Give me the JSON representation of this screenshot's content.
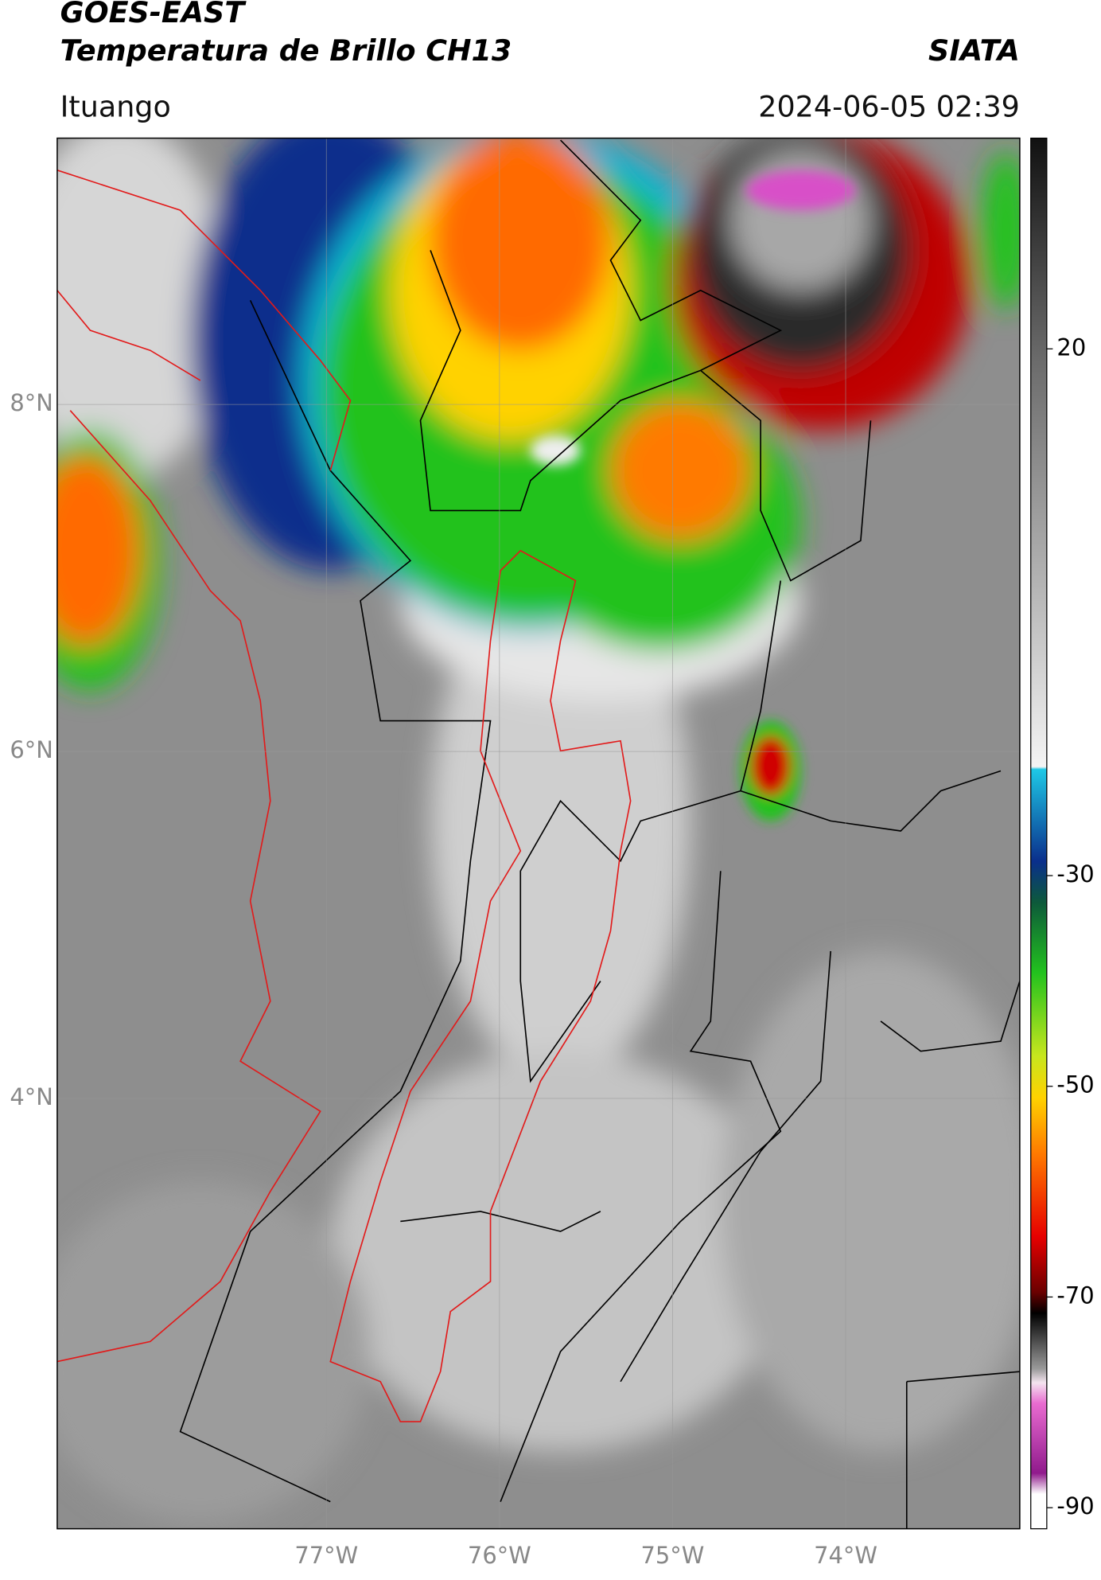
{
  "header": {
    "title": "GOES-EAST",
    "subtitle": "Temperatura de Brillo CH13",
    "brand": "SIATA",
    "location": "Ituango",
    "datetime": "2024-06-05 02:39"
  },
  "map": {
    "latlim": [
      1.52,
      9.535
    ],
    "lonlim": [
      -78.555,
      -72.994
    ],
    "lat_ticks": [
      {
        "value": 8,
        "label": "8°N"
      },
      {
        "value": 6,
        "label": "6°N"
      },
      {
        "value": 4,
        "label": "4°N"
      }
    ],
    "lon_ticks": [
      {
        "value": -77,
        "label": "77°W"
      },
      {
        "value": -76,
        "label": "76°W"
      },
      {
        "value": -75,
        "label": "75°W"
      },
      {
        "value": -74,
        "label": "74°W"
      }
    ]
  },
  "colorbar": {
    "lim": [
      -92,
      40
    ],
    "ticks": [
      20,
      -30,
      -50,
      -70,
      -90
    ]
  }
}
